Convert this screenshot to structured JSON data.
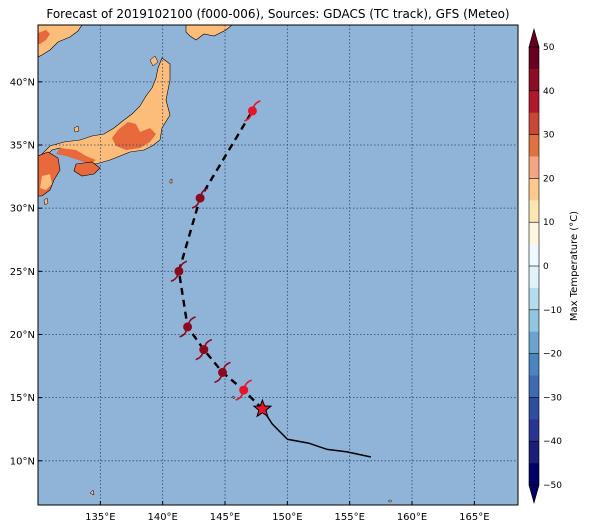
{
  "title": "Forecast of 2019102100 (f000-006), Sources: GDACS (TC track), GFS (Meteo)",
  "map": {
    "lon_range": [
      130.0,
      168.5
    ],
    "lat_range": [
      6.5,
      44.5
    ],
    "lon_ticks": [
      135,
      140,
      145,
      150,
      155,
      160,
      165
    ],
    "lat_ticks": [
      10,
      15,
      20,
      25,
      30,
      35,
      40
    ],
    "lon_labels": [
      "135°E",
      "140°E",
      "145°E",
      "150°E",
      "155°E",
      "160°E",
      "165°E"
    ],
    "lat_labels": [
      "10°N",
      "15°N",
      "20°N",
      "25°N",
      "30°N",
      "35°N",
      "40°N"
    ],
    "ocean_color": "#90b4d8",
    "grid": true
  },
  "track": {
    "past": [
      [
        156.7,
        10.3
      ],
      [
        154.8,
        10.7
      ],
      [
        153.2,
        10.9
      ],
      [
        151.7,
        11.4
      ],
      [
        150.0,
        11.7
      ],
      [
        148.8,
        12.9
      ],
      [
        148.0,
        14.1
      ]
    ],
    "current_position": [
      148.0,
      14.1
    ],
    "forecast": [
      [
        148.0,
        14.1
      ],
      [
        146.5,
        15.6
      ],
      [
        144.8,
        17.0
      ],
      [
        143.3,
        18.8
      ],
      [
        142.0,
        20.6
      ],
      [
        141.3,
        25.0
      ],
      [
        143.0,
        30.8
      ],
      [
        147.2,
        37.7
      ]
    ],
    "storm_symbols": [
      {
        "lon": 146.5,
        "lat": 15.6,
        "color": "#e6142a"
      },
      {
        "lon": 144.8,
        "lat": 17.0,
        "color": "#8b0a1e"
      },
      {
        "lon": 143.3,
        "lat": 18.8,
        "color": "#8b0a1e"
      },
      {
        "lon": 142.0,
        "lat": 20.6,
        "color": "#8b0a1e"
      },
      {
        "lon": 141.3,
        "lat": 25.0,
        "color": "#8b0a1e"
      },
      {
        "lon": 143.0,
        "lat": 30.8,
        "color": "#8b0a1e"
      },
      {
        "lon": 147.2,
        "lat": 37.7,
        "color": "#e6142a"
      }
    ]
  },
  "colorbar": {
    "label": "Max Temperature (°C)",
    "ticks": [
      "50",
      "40",
      "30",
      "20",
      "10",
      "0",
      "−10",
      "−20",
      "−30",
      "−40",
      "−50"
    ],
    "colors_top_to_bottom": [
      "#67001f",
      "#8c0c25",
      "#b2182b",
      "#c94737",
      "#e0723f",
      "#f4a582",
      "#fdc98e",
      "#fde6b1",
      "#fdf6df",
      "#f0f9ff",
      "#e0f3f8",
      "#b4dcec",
      "#92c5de",
      "#6ba3cd",
      "#4a85bf",
      "#3d6ab0",
      "#2f4ea0",
      "#283592",
      "#1c1d74",
      "#000066"
    ]
  }
}
